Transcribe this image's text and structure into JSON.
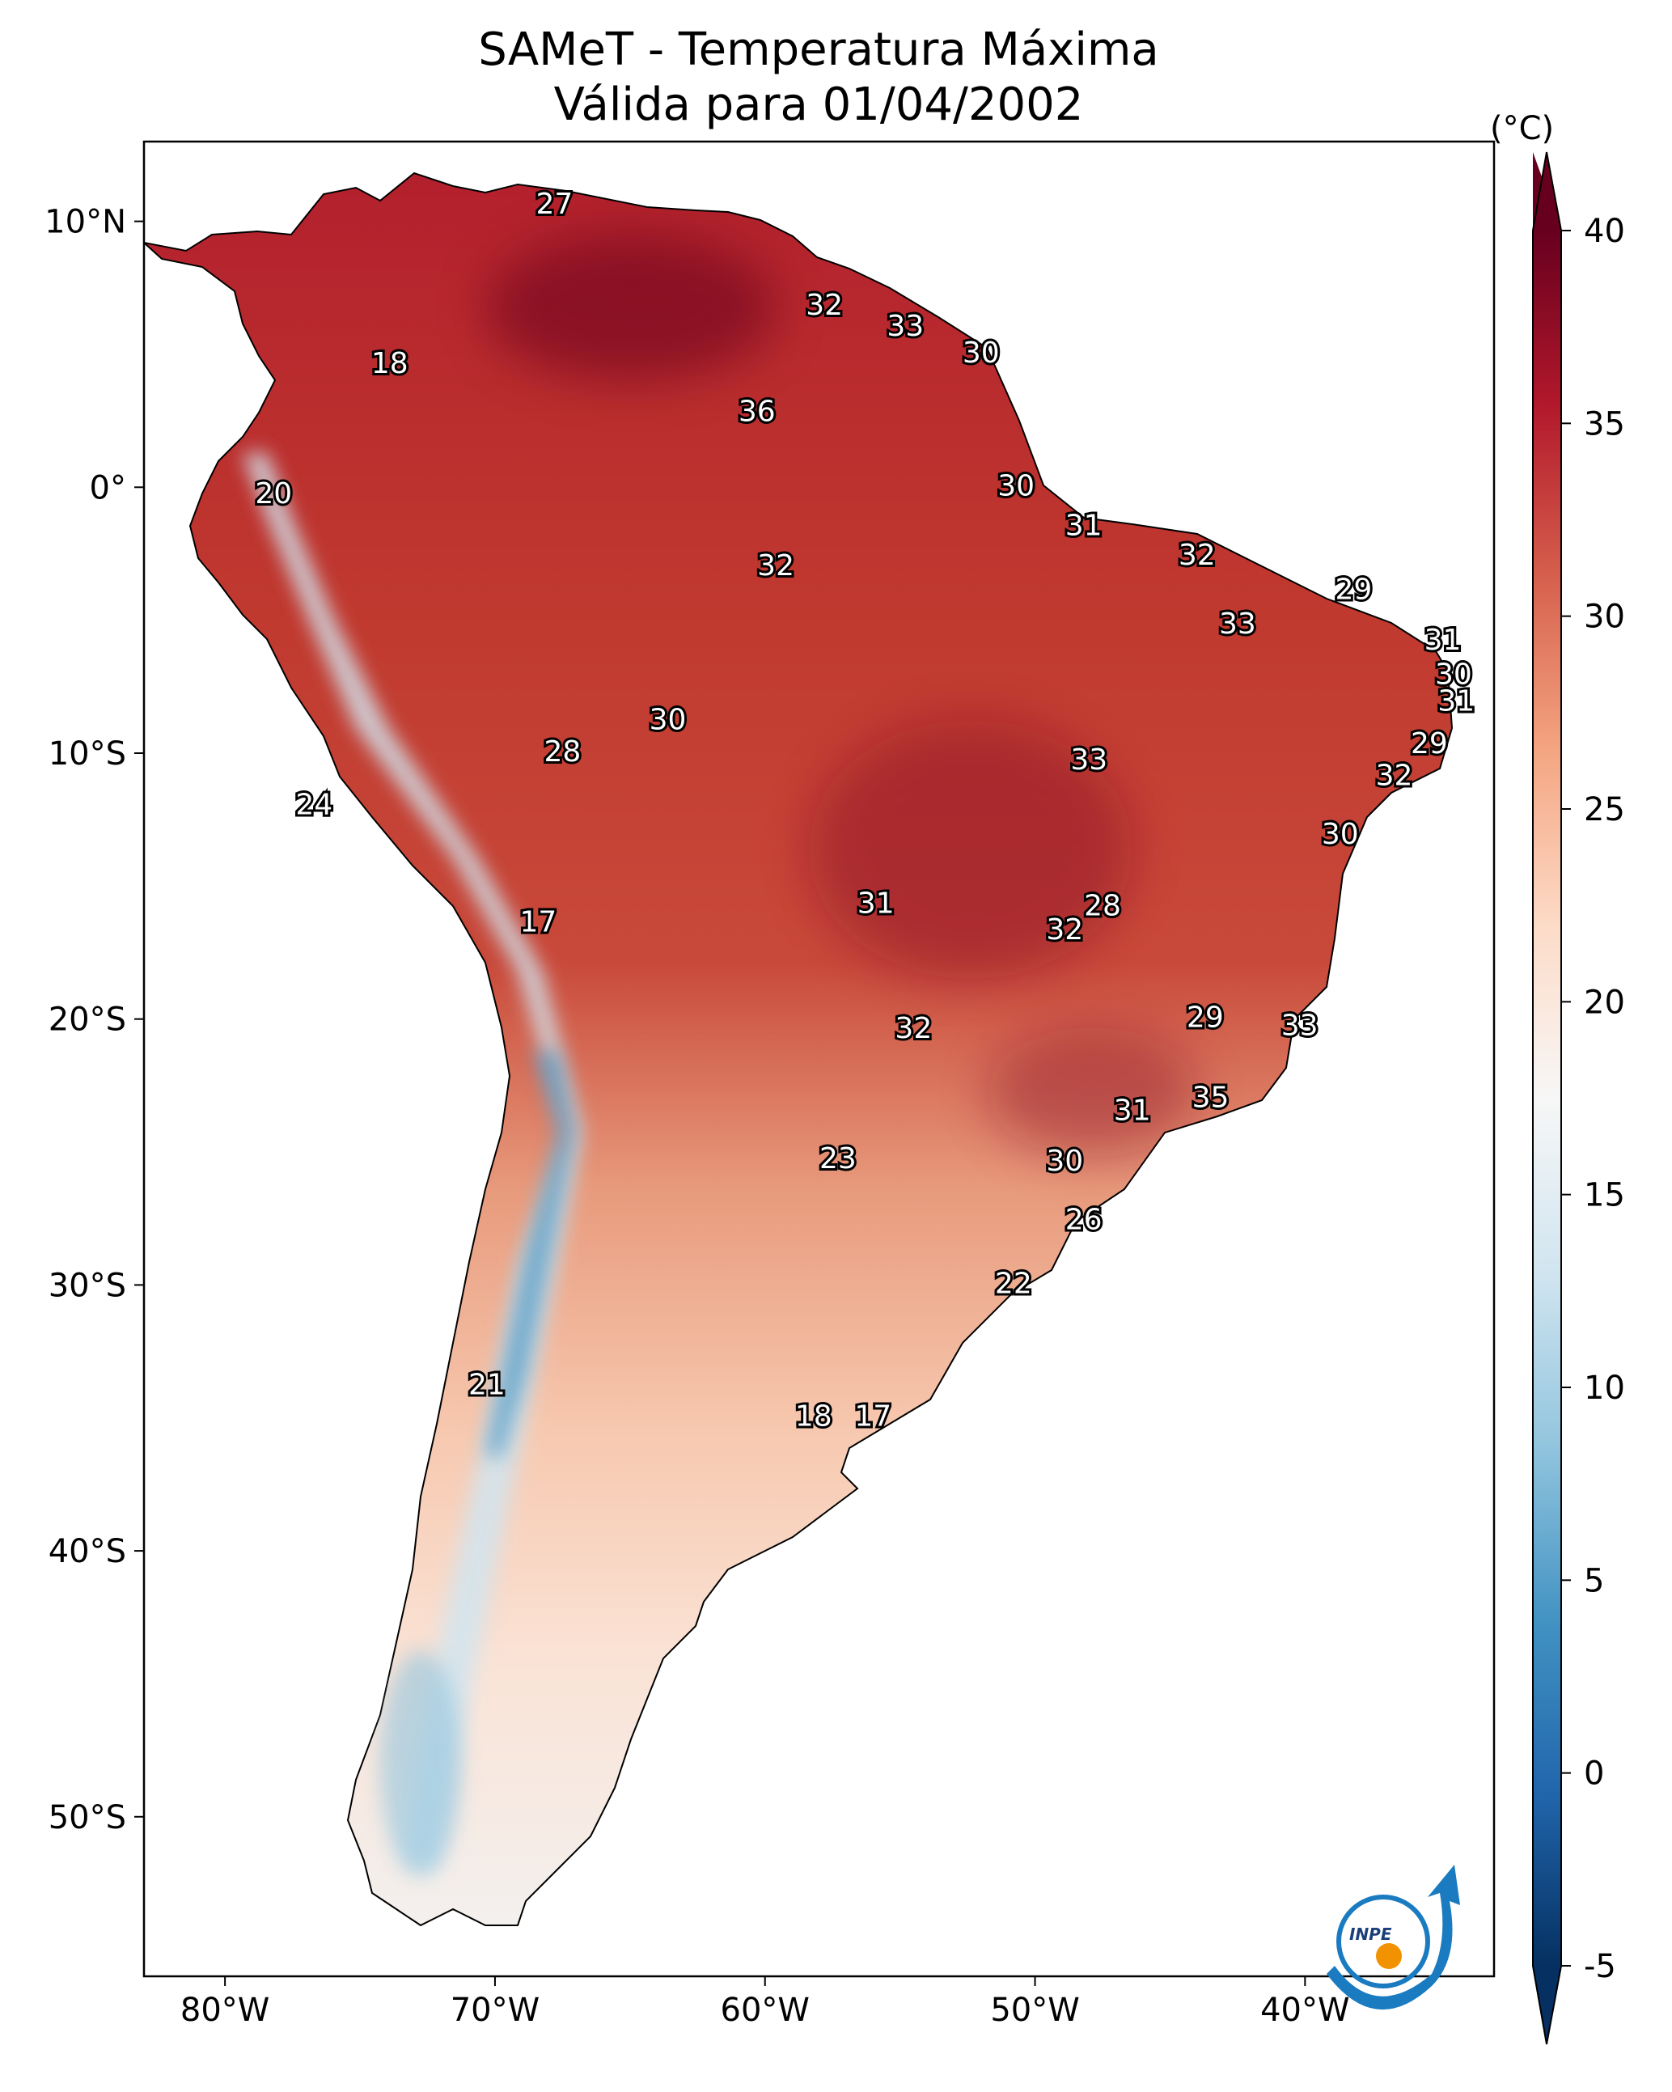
{
  "title": {
    "line1": "SAMeT - Temperatura Máxima",
    "line2": "Válida para 01/04/2002"
  },
  "colorbar": {
    "unit": "(°C)",
    "ticks": [
      "40",
      "35",
      "30",
      "25",
      "20",
      "15",
      "10",
      "5",
      "0",
      "-5"
    ],
    "min": -5,
    "max": 40,
    "colors": {
      "dark_red": "#67001f",
      "red": "#b2182b",
      "mid_red": "#d6604d",
      "salmon": "#f4a582",
      "light_pink": "#fddbc7",
      "white": "#f7f7f7",
      "light_blue": "#d1e5f0",
      "sky": "#92c5de",
      "blue": "#4393c3",
      "mid_blue": "#2166ac",
      "dark_blue": "#053061"
    }
  },
  "axes": {
    "lon_ticks": [
      "80°W",
      "70°W",
      "60°W",
      "50°W",
      "40°W"
    ],
    "lat_ticks": [
      "10°N",
      "0°",
      "10°S",
      "20°S",
      "30°S",
      "40°S",
      "50°S"
    ]
  },
  "map_labels": [
    {
      "text": "27",
      "lon": -67.8,
      "lat": 10.6
    },
    {
      "text": "32",
      "lon": -57.8,
      "lat": 6.8
    },
    {
      "text": "33",
      "lon": -54.8,
      "lat": 6.0
    },
    {
      "text": "30",
      "lon": -52.0,
      "lat": 5.0
    },
    {
      "text": "18",
      "lon": -73.9,
      "lat": 4.6
    },
    {
      "text": "36",
      "lon": -60.3,
      "lat": 2.8
    },
    {
      "text": "30",
      "lon": -50.7,
      "lat": 0.0
    },
    {
      "text": "20",
      "lon": -78.2,
      "lat": -0.3
    },
    {
      "text": "31",
      "lon": -48.2,
      "lat": -1.5
    },
    {
      "text": "32",
      "lon": -44.0,
      "lat": -2.6
    },
    {
      "text": "32",
      "lon": -59.6,
      "lat": -3.0
    },
    {
      "text": "29",
      "lon": -38.2,
      "lat": -3.9
    },
    {
      "text": "33",
      "lon": -42.5,
      "lat": -5.2
    },
    {
      "text": "31",
      "lon": -34.9,
      "lat": -5.8
    },
    {
      "text": "30",
      "lon": -34.5,
      "lat": -7.1
    },
    {
      "text": "31",
      "lon": -34.4,
      "lat": -8.1
    },
    {
      "text": "30",
      "lon": -63.6,
      "lat": -8.8
    },
    {
      "text": "29",
      "lon": -35.4,
      "lat": -9.7
    },
    {
      "text": "28",
      "lon": -67.5,
      "lat": -10.0
    },
    {
      "text": "33",
      "lon": -48.0,
      "lat": -10.3
    },
    {
      "text": "32",
      "lon": -36.7,
      "lat": -10.9
    },
    {
      "text": "24",
      "lon": -76.7,
      "lat": -12.0
    },
    {
      "text": "30",
      "lon": -38.7,
      "lat": -13.1
    },
    {
      "text": "31",
      "lon": -55.9,
      "lat": -15.7
    },
    {
      "text": "28",
      "lon": -47.5,
      "lat": -15.8
    },
    {
      "text": "17",
      "lon": -68.4,
      "lat": -16.4
    },
    {
      "text": "32",
      "lon": -48.9,
      "lat": -16.7
    },
    {
      "text": "29",
      "lon": -43.7,
      "lat": -20.0
    },
    {
      "text": "33",
      "lon": -40.2,
      "lat": -20.3
    },
    {
      "text": "32",
      "lon": -54.5,
      "lat": -20.4
    },
    {
      "text": "35",
      "lon": -43.5,
      "lat": -23.0
    },
    {
      "text": "31",
      "lon": -46.4,
      "lat": -23.5
    },
    {
      "text": "23",
      "lon": -57.3,
      "lat": -25.3
    },
    {
      "text": "30",
      "lon": -48.9,
      "lat": -25.4
    },
    {
      "text": "26",
      "lon": -48.2,
      "lat": -27.6
    },
    {
      "text": "22",
      "lon": -50.8,
      "lat": -30.0
    },
    {
      "text": "21",
      "lon": -70.3,
      "lat": -33.8
    },
    {
      "text": "18",
      "lon": -58.2,
      "lat": -35.0
    },
    {
      "text": "17",
      "lon": -56.0,
      "lat": -35.0
    }
  ],
  "logo": {
    "text": "INPE"
  }
}
